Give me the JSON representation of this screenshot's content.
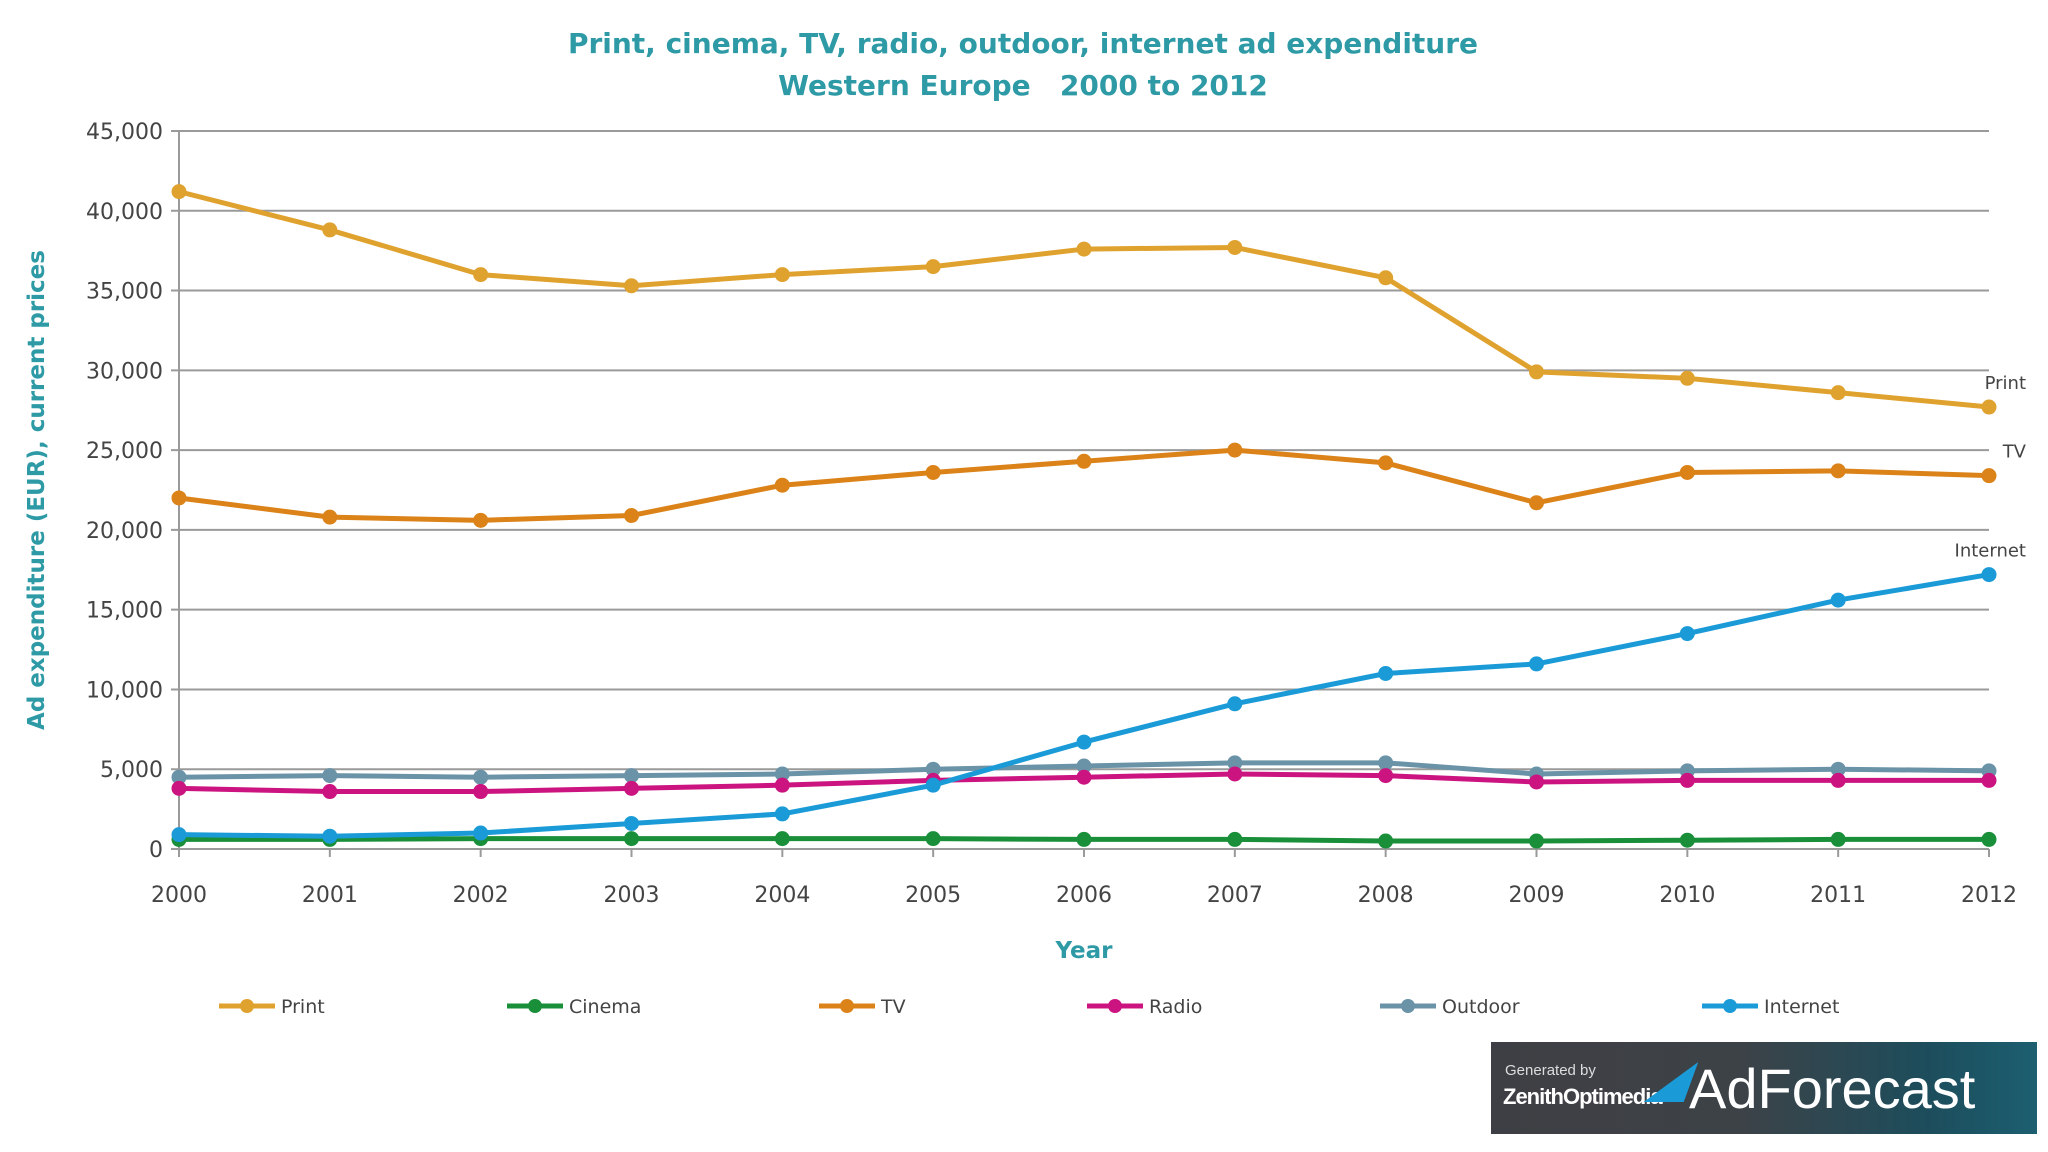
{
  "chart_data": {
    "type": "line",
    "title": "Print, cinema, TV, radio, outdoor, internet ad expenditure",
    "subtitle": "Western Europe   2000 to 2012",
    "xlabel": "Year",
    "ylabel": "Ad expenditure (EUR), current prices",
    "ylim": [
      0,
      45000
    ],
    "yticks": [
      "0",
      "5,000",
      "10,000",
      "15,000",
      "20,000",
      "25,000",
      "30,000",
      "35,000",
      "40,000",
      "45,000"
    ],
    "x": [
      "2000",
      "2001",
      "2002",
      "2003",
      "2004",
      "2005",
      "2006",
      "2007",
      "2008",
      "2009",
      "2010",
      "2011",
      "2012"
    ],
    "grid": true,
    "legend_placement": "bottom",
    "series": [
      {
        "name": "Print",
        "color": "#E0A22E",
        "end_label": "Print",
        "values": [
          41200,
          38800,
          36000,
          35300,
          36000,
          36500,
          37600,
          37700,
          35800,
          29900,
          29500,
          28600,
          27700
        ]
      },
      {
        "name": "Cinema",
        "color": "#1A8F3A",
        "values": [
          600,
          600,
          650,
          650,
          650,
          650,
          600,
          600,
          500,
          500,
          550,
          600,
          600
        ]
      },
      {
        "name": "TV",
        "color": "#DB8218",
        "end_label": "TV",
        "values": [
          22000,
          20800,
          20600,
          20900,
          22800,
          23600,
          24300,
          25000,
          24200,
          21700,
          23600,
          23700,
          23400
        ]
      },
      {
        "name": "Radio",
        "color": "#CC1480",
        "values": [
          3800,
          3600,
          3600,
          3800,
          4000,
          4300,
          4500,
          4700,
          4600,
          4200,
          4300,
          4300,
          4300
        ]
      },
      {
        "name": "Outdoor",
        "color": "#6A93A8",
        "values": [
          4500,
          4600,
          4500,
          4600,
          4700,
          5000,
          5200,
          5400,
          5400,
          4700,
          4900,
          5000,
          4900
        ]
      },
      {
        "name": "Internet",
        "color": "#1A9BD7",
        "end_label": "Internet",
        "values": [
          900,
          800,
          1000,
          1600,
          2200,
          4000,
          6700,
          9100,
          11000,
          11600,
          13500,
          15600,
          17200
        ]
      }
    ]
  },
  "logo": {
    "generated_by": "Generated by",
    "company": "ZenithOptimedia",
    "product": "AdForecast"
  }
}
